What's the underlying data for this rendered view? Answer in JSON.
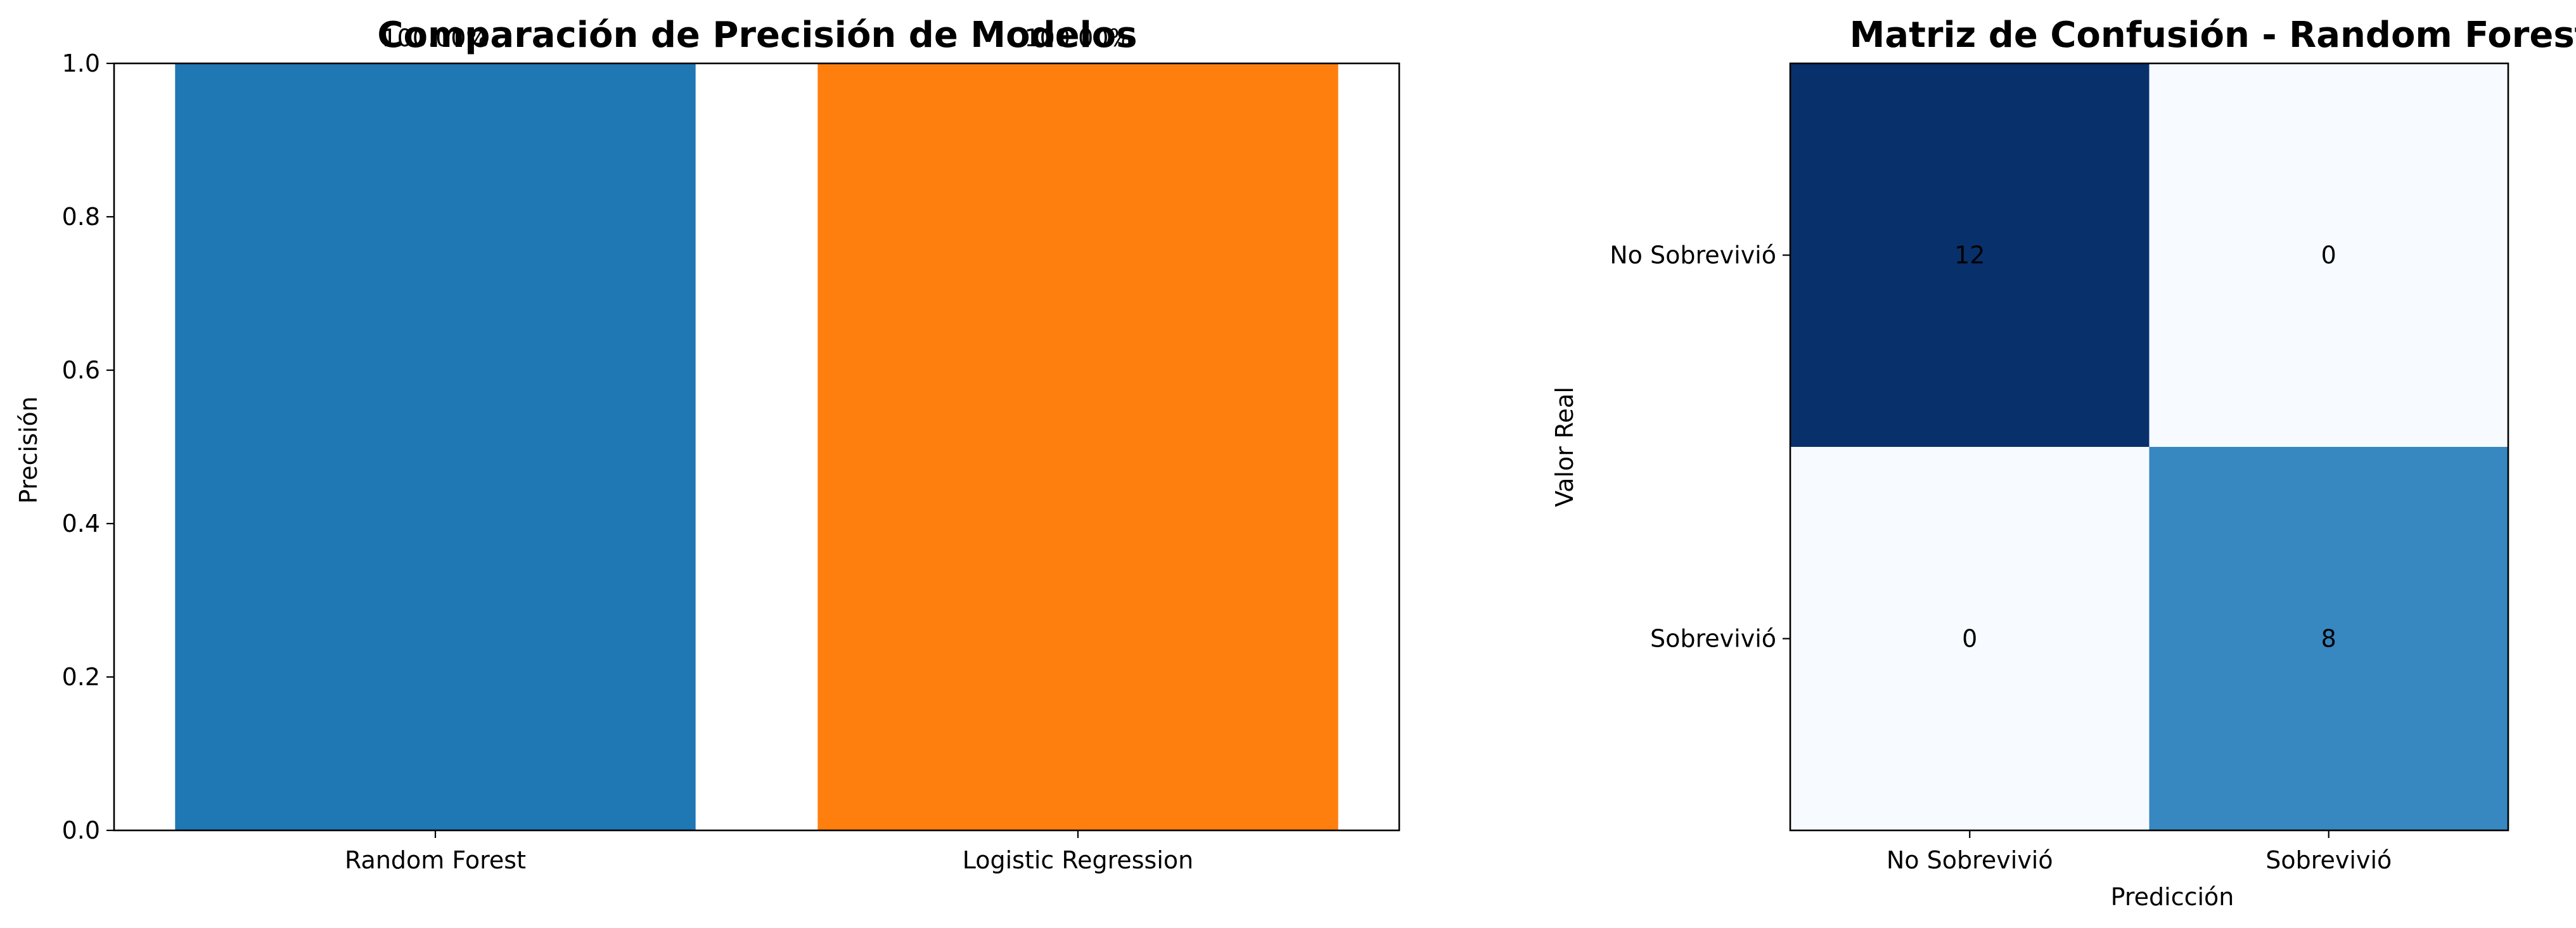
{
  "chart_data": [
    {
      "type": "bar",
      "title": "Comparación de Precisión de Modelos",
      "xlabel": "",
      "ylabel": "Precisión",
      "categories": [
        "Random Forest",
        "Logistic Regression"
      ],
      "values": [
        1.0,
        1.0
      ],
      "data_labels": [
        "100.00%",
        "100.00%"
      ],
      "colors": [
        "#1f77b4",
        "#ff7f0e"
      ],
      "ylim": [
        0,
        1.0
      ],
      "yticks": [
        "0.0",
        "0.2",
        "0.4",
        "0.6",
        "0.8",
        "1.0"
      ],
      "grid": false,
      "legend": "none"
    },
    {
      "type": "heatmap",
      "title": "Matriz de Confusión - Random Forest",
      "xlabel": "Predicción",
      "ylabel": "Valor Real",
      "x_categories": [
        "No Sobrevivió",
        "Sobrevivió"
      ],
      "y_categories": [
        "No Sobrevivió",
        "Sobrevivió"
      ],
      "values": [
        [
          12,
          0
        ],
        [
          0,
          8
        ]
      ],
      "colormap": "Blues",
      "colors": {
        "low": "#f7fbff",
        "mid": "#3787c0",
        "high": "#08306b"
      },
      "grid": false,
      "legend": "none"
    }
  ]
}
